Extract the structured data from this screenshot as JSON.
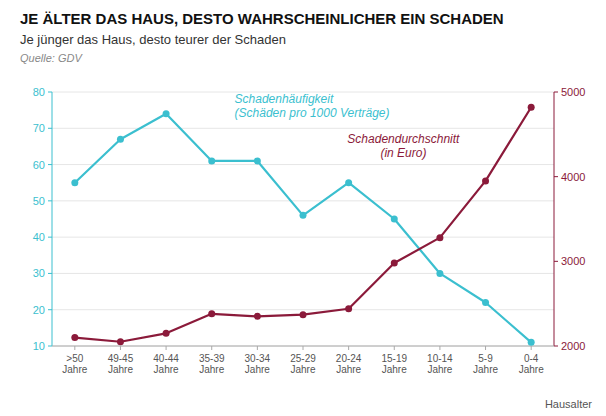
{
  "chart_data": {
    "type": "line",
    "title": "JE ÄLTER DAS HAUS, DESTO WAHRSCHEINLICHER EIN SCHADEN",
    "subtitle": "Je jünger das Haus, desto teurer der Schaden",
    "source": "Quelle: GDV",
    "x_label": "Hausalter",
    "categories": [
      ">50\nJahre",
      "49-45\nJahre",
      "40-44\nJahre",
      "35-39\nJahre",
      "30-34\nJahre",
      "25-29\nJahre",
      "20-24\nJahre",
      "15-19\nJahre",
      "10-14\nJahre",
      "5-9\nJahre",
      "0-4\nJahre"
    ],
    "series": [
      {
        "name": "Schadenhäufigkeit\n(Schäden pro 1000 Verträge)",
        "color": "#3BBFCF",
        "marker": "circle",
        "values": [
          55,
          67,
          74,
          61,
          61,
          46,
          55,
          45,
          30,
          22,
          11
        ]
      },
      {
        "name": "Schadendurchschnitt\n(in Euro)",
        "color": "#8B1A3A",
        "marker": "circle",
        "axis": "y2",
        "values": [
          2100,
          2050,
          2150,
          2380,
          2350,
          2370,
          2440,
          2980,
          3280,
          3950,
          4820
        ]
      }
    ],
    "ylim": [
      10,
      80
    ],
    "yticks": [
      10,
      20,
      30,
      40,
      50,
      60,
      70,
      80
    ],
    "y2lim": [
      2000,
      5000
    ],
    "y2ticks": [
      2000,
      3000,
      4000,
      5000
    ],
    "grid": true
  }
}
